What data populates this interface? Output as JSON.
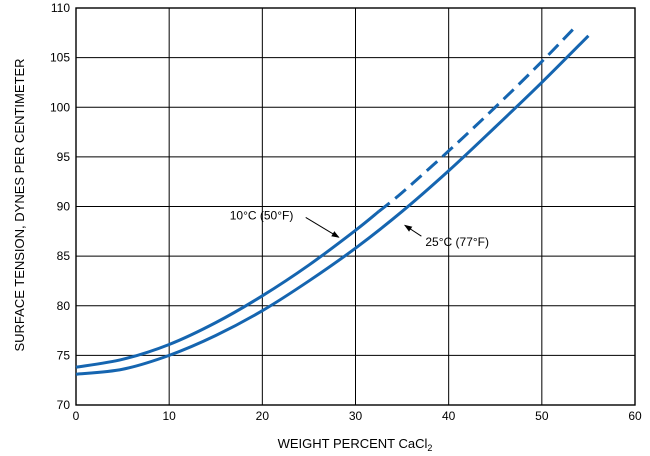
{
  "chart_data": {
    "type": "line",
    "xlabel": "WEIGHT PERCENT CaCl",
    "xlabel_subscript": "2",
    "ylabel": "SURFACE TENSION, DYNES PER CENTIMETER",
    "xlim": [
      0,
      60
    ],
    "ylim": [
      70,
      110
    ],
    "x_ticks": [
      "0",
      "10",
      "20",
      "30",
      "40",
      "50",
      "60"
    ],
    "y_ticks": [
      "70",
      "75",
      "80",
      "85",
      "90",
      "95",
      "100",
      "105",
      "110"
    ],
    "grid": true,
    "line_color": "#1565b0",
    "series": [
      {
        "name": "10°C (50°F)",
        "x": [
          0,
          5,
          10,
          15,
          20,
          25,
          30,
          32.5
        ],
        "y": [
          73.8,
          74.6,
          76.1,
          78.3,
          81.0,
          84.1,
          87.6,
          89.5
        ],
        "style": "solid"
      },
      {
        "name": "10°C (50°F)",
        "x": [
          32.5,
          35,
          40,
          45,
          50,
          53.5
        ],
        "y": [
          89.5,
          91.4,
          95.6,
          100.0,
          104.6,
          108.0
        ],
        "style": "dashed"
      },
      {
        "name": "25°C (77°F)",
        "x": [
          0,
          5,
          10,
          15,
          20,
          25,
          30,
          35,
          40,
          45,
          50,
          55
        ],
        "y": [
          73.1,
          73.6,
          75.0,
          77.0,
          79.5,
          82.5,
          85.8,
          89.5,
          93.6,
          98.0,
          102.5,
          107.2
        ],
        "style": "solid"
      }
    ],
    "annotations": [
      {
        "text": "10°C (50°F)",
        "x": 16.5,
        "y": 88.7,
        "arrow_to": [
          28.2,
          86.9
        ]
      },
      {
        "text": "25°C (77°F)",
        "x": 37.5,
        "y": 86.0,
        "arrow_to": [
          35.3,
          88.1
        ]
      }
    ]
  }
}
